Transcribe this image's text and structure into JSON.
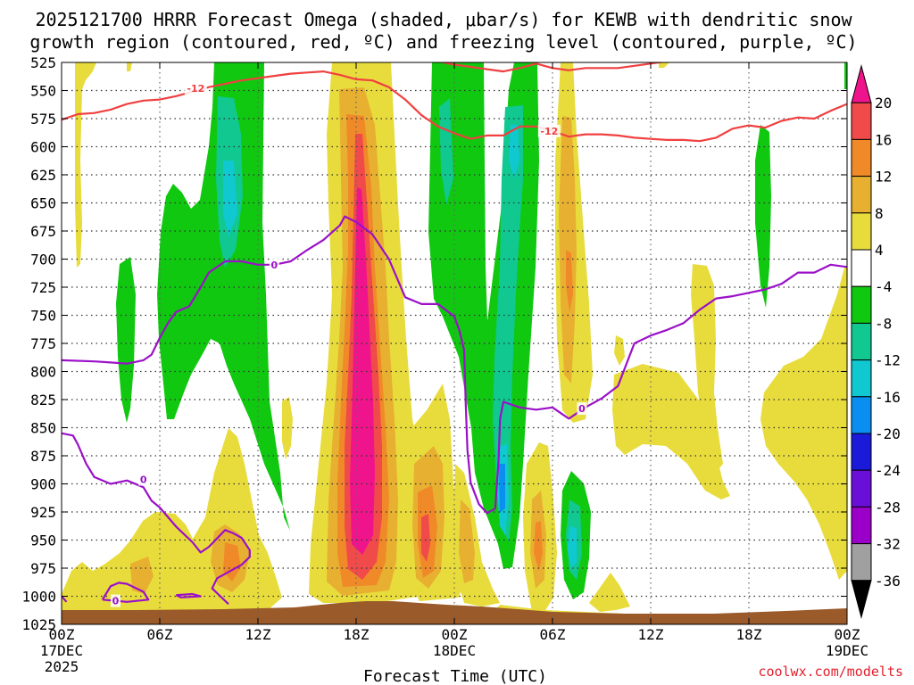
{
  "chart_data": {
    "type": "heatmap",
    "title_line1": "2025121700 HRRR Forecast Omega (shaded, μbar/s) for KEWB with dendritic snow",
    "title_line2": "growth region (contoured, red, ºC) and freezing level (contoured, purple, ºC)",
    "xlabel": "Forecast Time (UTC)",
    "ylabel": "Pressure (hPa)",
    "x_range_hours": [
      0,
      48
    ],
    "x_ticks": [
      {
        "hour": 0,
        "label": "00Z",
        "sub1": "17DEC",
        "sub2": "2025"
      },
      {
        "hour": 6,
        "label": "06Z"
      },
      {
        "hour": 12,
        "label": "12Z"
      },
      {
        "hour": 18,
        "label": "18Z"
      },
      {
        "hour": 24,
        "label": "00Z",
        "sub1": "18DEC"
      },
      {
        "hour": 30,
        "label": "06Z"
      },
      {
        "hour": 36,
        "label": "12Z"
      },
      {
        "hour": 42,
        "label": "18Z"
      },
      {
        "hour": 48,
        "label": "00Z",
        "sub1": "19DEC"
      }
    ],
    "y_range_hpa": [
      525,
      1025
    ],
    "y_ticks": [
      "525",
      "550",
      "575",
      "600",
      "625",
      "650",
      "675",
      "700",
      "725",
      "750",
      "775",
      "800",
      "825",
      "850",
      "875",
      "900",
      "925",
      "950",
      "975",
      "1000",
      "1025"
    ],
    "colorbar": {
      "labels": [
        "20",
        "16",
        "12",
        "8",
        "4",
        "-4",
        "-8",
        "-12",
        "-16",
        "-20",
        "-24",
        "-28",
        "-32",
        "-36"
      ],
      "bins": [
        {
          "range": "< -36",
          "color": "#000000"
        },
        {
          "range": "-36 to -32",
          "color": "#a0a0a0"
        },
        {
          "range": "-32 to -28",
          "color": "#9b00c8"
        },
        {
          "range": "-28 to -24",
          "color": "#6a0fd8"
        },
        {
          "range": "-24 to -20",
          "color": "#1a1ad8"
        },
        {
          "range": "-20 to -16",
          "color": "#0a8ef0"
        },
        {
          "range": "-16 to -12",
          "color": "#10c8d0"
        },
        {
          "range": "-12 to -8",
          "color": "#10c890"
        },
        {
          "range": "-8 to -4",
          "color": "#10c810"
        },
        {
          "range": "-4 to 4",
          "color": "#ffffff"
        },
        {
          "range": "4 to 8",
          "color": "#e8dc3c"
        },
        {
          "range": "8 to 12",
          "color": "#e8b030"
        },
        {
          "range": "12 to 16",
          "color": "#f08a28"
        },
        {
          "range": "16 to 20",
          "color": "#f04a4a"
        },
        {
          "range": "> 20",
          "color": "#f0148c"
        }
      ]
    },
    "contours": [
      {
        "name": "dendritic growth -12 C",
        "color": "#f04040",
        "label": "-12",
        "segments": [
          [
            [
              0,
              576
            ],
            [
              1,
              571
            ],
            [
              2,
              570
            ],
            [
              3,
              567
            ],
            [
              4,
              562
            ],
            [
              5,
              559
            ],
            [
              6,
              558
            ],
            [
              7,
              555
            ],
            [
              8,
              551
            ],
            [
              9,
              547
            ],
            [
              10,
              544
            ],
            [
              11,
              541
            ],
            [
              12,
              539
            ],
            [
              13,
              537
            ],
            [
              14,
              535
            ],
            [
              15,
              534
            ],
            [
              16,
              533
            ],
            [
              17,
              536
            ],
            [
              18,
              540
            ],
            [
              19,
              541
            ],
            [
              20,
              547
            ],
            [
              21,
              558
            ],
            [
              22,
              572
            ],
            [
              23,
              582
            ],
            [
              24,
              588
            ],
            [
              25,
              593
            ],
            [
              26,
              590
            ],
            [
              27,
              590
            ],
            [
              28,
              582
            ],
            [
              29,
              582
            ],
            [
              30,
              586
            ],
            [
              31,
              591
            ],
            [
              32,
              589
            ],
            [
              33,
              589
            ],
            [
              34,
              590
            ],
            [
              35,
              592
            ],
            [
              36,
              593
            ],
            [
              37,
              594
            ],
            [
              38,
              594
            ],
            [
              39,
              595
            ],
            [
              40,
              592
            ],
            [
              41,
              584
            ],
            [
              42,
              581
            ],
            [
              43,
              583
            ],
            [
              44,
              577
            ],
            [
              45,
              574
            ],
            [
              46,
              575
            ],
            [
              47,
              568
            ],
            [
              48,
              562
            ]
          ],
          [
            [
              23,
              524
            ],
            [
              24,
              527
            ],
            [
              25,
              529
            ],
            [
              26,
              531
            ],
            [
              27,
              533
            ],
            [
              28,
              530
            ],
            [
              29,
              526
            ],
            [
              30,
              530
            ],
            [
              31,
              532
            ],
            [
              32,
              530
            ],
            [
              33,
              530
            ],
            [
              34,
              530
            ],
            [
              35,
              528
            ],
            [
              36,
              526
            ],
            [
              37,
              524
            ]
          ]
        ]
      },
      {
        "name": "freezing level 0 C",
        "color": "#9b10c8",
        "label": "0",
        "segments": [
          [
            [
              0,
              790
            ],
            [
              2,
              791
            ],
            [
              3,
              792
            ],
            [
              4,
              793
            ],
            [
              5,
              790
            ],
            [
              5.5,
              785
            ],
            [
              6,
              770
            ],
            [
              6.5,
              757
            ],
            [
              7,
              747
            ],
            [
              7.8,
              742
            ],
            [
              8.5,
              725
            ],
            [
              9,
              712
            ],
            [
              10,
              702
            ],
            [
              11,
              702
            ],
            [
              12,
              705
            ],
            [
              13,
              705
            ],
            [
              14,
              702
            ],
            [
              15,
              692
            ],
            [
              16,
              683
            ],
            [
              17,
              670
            ],
            [
              17.3,
              662
            ],
            [
              18,
              667
            ],
            [
              19,
              678
            ],
            [
              20,
              700
            ],
            [
              21,
              734
            ],
            [
              22,
              740
            ],
            [
              23,
              740
            ],
            [
              24,
              751
            ],
            [
              24.3,
              763
            ],
            [
              24.6,
              781
            ],
            [
              24.7,
              829
            ],
            [
              24.8,
              870
            ],
            [
              25,
              899
            ],
            [
              25.5,
              918
            ],
            [
              26,
              926
            ],
            [
              26.5,
              922
            ],
            [
              26.7,
              880
            ],
            [
              26.8,
              842
            ],
            [
              27,
              827
            ],
            [
              28,
              832
            ],
            [
              29,
              834
            ],
            [
              30,
              832
            ],
            [
              31,
              842
            ],
            [
              31.5,
              837
            ],
            [
              32,
              832
            ],
            [
              33,
              824
            ],
            [
              34,
              813
            ],
            [
              35,
              775
            ],
            [
              36,
              768
            ],
            [
              37,
              763
            ],
            [
              38,
              757
            ],
            [
              39,
              745
            ],
            [
              40,
              735
            ],
            [
              41,
              733
            ],
            [
              42,
              730
            ],
            [
              43,
              727
            ],
            [
              44,
              722
            ],
            [
              45,
              712
            ],
            [
              46,
              712
            ],
            [
              47,
              705
            ],
            [
              48,
              707
            ]
          ],
          [
            [
              0,
              855
            ],
            [
              0.7,
              857
            ],
            [
              1,
              865
            ],
            [
              1.5,
              882
            ],
            [
              2,
              894
            ],
            [
              3,
              900
            ],
            [
              4,
              897
            ],
            [
              5,
              903
            ],
            [
              5.5,
              915
            ],
            [
              6,
              921
            ],
            [
              7,
              938
            ],
            [
              8,
              952
            ],
            [
              8.5,
              961
            ],
            [
              9,
              956
            ],
            [
              10,
              941
            ],
            [
              10.5,
              944
            ],
            [
              11,
              948
            ],
            [
              11.5,
              959
            ],
            [
              11.5,
              965
            ],
            [
              11,
              972
            ],
            [
              9.5,
              984
            ],
            [
              9.2,
              993
            ],
            [
              9.7,
              1000
            ],
            [
              10.2,
              1007
            ]
          ],
          [
            [
              0,
              1000
            ],
            [
              0.3,
              1005
            ]
          ],
          [
            [
              2.5,
              1003
            ],
            [
              3,
              991
            ],
            [
              3.5,
              988
            ],
            [
              4,
              989
            ],
            [
              5,
              996
            ],
            [
              5.3,
              1003
            ],
            [
              4,
              1005
            ],
            [
              2.5,
              1003
            ]
          ],
          [
            [
              7,
              999
            ],
            [
              8,
              998
            ],
            [
              8.5,
              1000
            ],
            [
              7.3,
              1001
            ],
            [
              7,
              999
            ]
          ]
        ]
      }
    ],
    "credit": "coolwx.com/modelts"
  }
}
